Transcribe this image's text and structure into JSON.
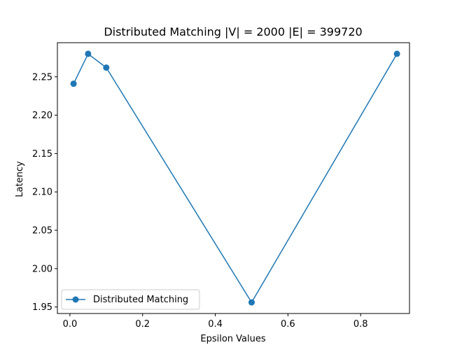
{
  "chart_data": {
    "type": "line",
    "title": "Distributed Matching |V| = 2000 |E| = 399720",
    "xlabel": "Epsilon Values",
    "ylabel": "Latency",
    "xlim": [
      -0.0345,
      0.9345
    ],
    "ylim": [
      1.9415,
      2.2945
    ],
    "x_ticks": [
      0.0,
      0.2,
      0.4,
      0.6,
      0.8
    ],
    "x_tick_labels": [
      "0.0",
      "0.2",
      "0.4",
      "0.6",
      "0.8"
    ],
    "y_ticks": [
      1.95,
      2.0,
      2.05,
      2.1,
      2.15,
      2.2,
      2.25
    ],
    "y_tick_labels": [
      "1.95",
      "2.00",
      "2.05",
      "2.10",
      "2.15",
      "2.20",
      "2.25"
    ],
    "grid": false,
    "legend_position": "lower left",
    "series": [
      {
        "name": "Distributed Matching",
        "color": "#1f77b4",
        "marker": "circle",
        "x": [
          0.01,
          0.05,
          0.1,
          0.5,
          0.9
        ],
        "y": [
          2.241,
          2.28,
          2.262,
          1.956,
          2.28
        ]
      }
    ]
  }
}
